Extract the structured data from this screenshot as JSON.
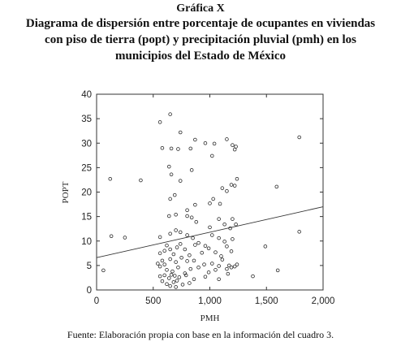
{
  "figure": {
    "label": "Gráfica X",
    "title_lines": [
      "Diagrama de dispersión entre porcentaje de ocupantes en viviendas",
      "con piso de tierra (popt) y precipitación pluvial (pmh) en los",
      "municipios del Estado de México"
    ],
    "source": "Fuente: Elaboración propia con base en la información del cuadro 3."
  },
  "chart_data": {
    "type": "scatter",
    "title": "",
    "xlabel": "PMH",
    "ylabel": "POPT",
    "xlim": [
      0,
      2000
    ],
    "ylim": [
      0,
      40
    ],
    "xticks": [
      0,
      500,
      1000,
      1500,
      2000
    ],
    "xtick_labels": [
      "0",
      "500",
      "1,000",
      "1,500",
      "2,000"
    ],
    "yticks": [
      0,
      5,
      10,
      15,
      20,
      25,
      30,
      35,
      40
    ],
    "ytick_labels": [
      "0",
      "5",
      "10",
      "15",
      "20",
      "25",
      "30",
      "35",
      "40"
    ],
    "grid": false,
    "trendline": {
      "x": [
        0,
        2000
      ],
      "y": [
        6.6,
        17.0
      ]
    },
    "points": [
      [
        60,
        4.0
      ],
      [
        120,
        22.7
      ],
      [
        130,
        11.0
      ],
      [
        250,
        10.7
      ],
      [
        390,
        22.4
      ],
      [
        560,
        34.3
      ],
      [
        580,
        29.0
      ],
      [
        650,
        35.9
      ],
      [
        660,
        28.9
      ],
      [
        720,
        28.8
      ],
      [
        740,
        32.2
      ],
      [
        830,
        28.9
      ],
      [
        870,
        30.7
      ],
      [
        960,
        30.0
      ],
      [
        1040,
        29.9
      ],
      [
        1150,
        30.8
      ],
      [
        1200,
        29.6
      ],
      [
        1230,
        29.3
      ],
      [
        1220,
        28.7
      ],
      [
        1790,
        31.2
      ],
      [
        640,
        25.2
      ],
      [
        660,
        23.6
      ],
      [
        740,
        22.3
      ],
      [
        840,
        24.5
      ],
      [
        1020,
        27.4
      ],
      [
        1240,
        22.7
      ],
      [
        650,
        18.6
      ],
      [
        690,
        19.4
      ],
      [
        800,
        16.3
      ],
      [
        870,
        17.4
      ],
      [
        1000,
        17.7
      ],
      [
        1030,
        18.6
      ],
      [
        1090,
        17.6
      ],
      [
        1110,
        20.8
      ],
      [
        1150,
        20.2
      ],
      [
        1190,
        21.5
      ],
      [
        1220,
        21.3
      ],
      [
        1590,
        21.1
      ],
      [
        640,
        15.1
      ],
      [
        700,
        15.4
      ],
      [
        800,
        15.1
      ],
      [
        840,
        14.8
      ],
      [
        880,
        13.9
      ],
      [
        1000,
        12.8
      ],
      [
        1080,
        14.5
      ],
      [
        1130,
        13.4
      ],
      [
        1180,
        12.6
      ],
      [
        1200,
        14.5
      ],
      [
        1230,
        13.4
      ],
      [
        1790,
        11.9
      ],
      [
        560,
        10.8
      ],
      [
        650,
        11.5
      ],
      [
        700,
        12.2
      ],
      [
        740,
        11.8
      ],
      [
        800,
        11.2
      ],
      [
        850,
        10.6
      ],
      [
        900,
        9.6
      ],
      [
        960,
        9.0
      ],
      [
        1020,
        11.2
      ],
      [
        1080,
        10.6
      ],
      [
        1130,
        9.9
      ],
      [
        1200,
        10.4
      ],
      [
        1490,
        8.9
      ],
      [
        560,
        7.5
      ],
      [
        600,
        8.0
      ],
      [
        620,
        9.1
      ],
      [
        650,
        8.3
      ],
      [
        680,
        7.3
      ],
      [
        710,
        8.7
      ],
      [
        740,
        9.4
      ],
      [
        780,
        8.3
      ],
      [
        820,
        7.1
      ],
      [
        870,
        9.2
      ],
      [
        930,
        7.6
      ],
      [
        990,
        8.5
      ],
      [
        1050,
        7.7
      ],
      [
        1100,
        6.9
      ],
      [
        1150,
        8.9
      ],
      [
        1190,
        7.9
      ],
      [
        540,
        5.4
      ],
      [
        560,
        4.8
      ],
      [
        580,
        6.0
      ],
      [
        600,
        5.2
      ],
      [
        620,
        4.1
      ],
      [
        650,
        6.3
      ],
      [
        670,
        3.8
      ],
      [
        700,
        5.7
      ],
      [
        720,
        4.6
      ],
      [
        750,
        6.6
      ],
      [
        780,
        3.4
      ],
      [
        800,
        5.9
      ],
      [
        830,
        4.3
      ],
      [
        860,
        6.0
      ],
      [
        900,
        4.6
      ],
      [
        950,
        5.2
      ],
      [
        990,
        3.6
      ],
      [
        1020,
        5.4
      ],
      [
        1050,
        4.1
      ],
      [
        1080,
        4.9
      ],
      [
        1110,
        6.2
      ],
      [
        1150,
        4.3
      ],
      [
        1170,
        5.0
      ],
      [
        1190,
        4.6
      ],
      [
        1220,
        4.8
      ],
      [
        1240,
        5.2
      ],
      [
        1600,
        4.0
      ],
      [
        560,
        2.8
      ],
      [
        580,
        1.8
      ],
      [
        600,
        3.0
      ],
      [
        620,
        1.2
      ],
      [
        640,
        2.4
      ],
      [
        650,
        0.8
      ],
      [
        660,
        3.1
      ],
      [
        680,
        1.6
      ],
      [
        690,
        2.9
      ],
      [
        700,
        0.6
      ],
      [
        710,
        1.9
      ],
      [
        730,
        2.6
      ],
      [
        760,
        1.1
      ],
      [
        790,
        3.0
      ],
      [
        820,
        1.4
      ],
      [
        860,
        2.2
      ],
      [
        960,
        2.7
      ],
      [
        1080,
        2.2
      ],
      [
        1160,
        3.3
      ],
      [
        1380,
        2.8
      ]
    ]
  }
}
